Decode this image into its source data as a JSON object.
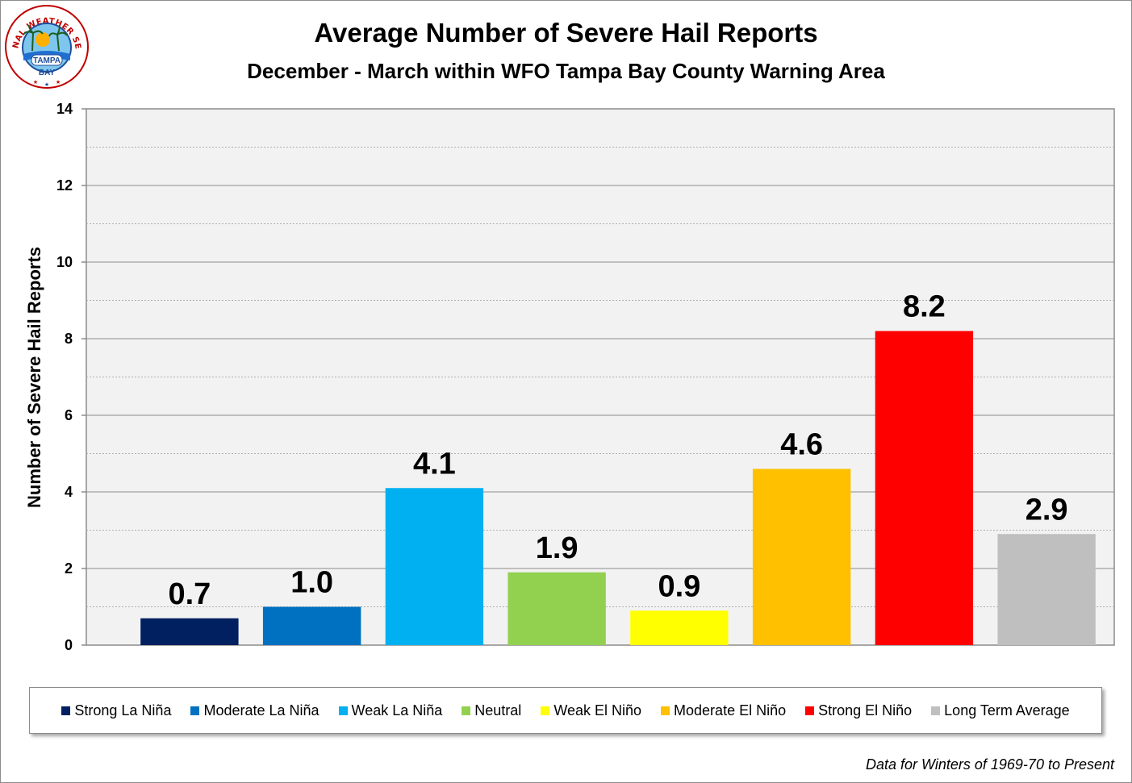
{
  "logo": {
    "ring_text": "NATIONAL WEATHER SERVICE",
    "line1": "TAMPA",
    "line2": "BAY"
  },
  "chart_data": {
    "type": "bar",
    "title": "Average Number of Severe Hail Reports",
    "subtitle": "December - March within WFO Tampa Bay County Warning Area",
    "xlabel": "",
    "ylabel": "Number of Severe Hail Reports",
    "ylim": [
      0,
      14
    ],
    "yticks": [
      0,
      2,
      4,
      6,
      8,
      10,
      12,
      14
    ],
    "grid": true,
    "legend_position": "bottom",
    "categories": [
      "Strong La Niña",
      "Moderate La Niña",
      "Weak La Niña",
      "Neutral",
      "Weak El Niño",
      "Moderate El Niño",
      "Strong El Niño",
      "Long Term Average"
    ],
    "values": [
      0.7,
      1.0,
      4.1,
      1.9,
      0.9,
      4.6,
      8.2,
      2.9
    ],
    "labels": [
      "0.7",
      "1.0",
      "4.1",
      "1.9",
      "0.9",
      "4.6",
      "8.2",
      "2.9"
    ],
    "colors": [
      "#002060",
      "#0070c0",
      "#00b0f0",
      "#92d050",
      "#ffff00",
      "#ffc000",
      "#ff0000",
      "#bfbfbf"
    ]
  },
  "footnote": "Data for Winters of 1969-70 to Present"
}
